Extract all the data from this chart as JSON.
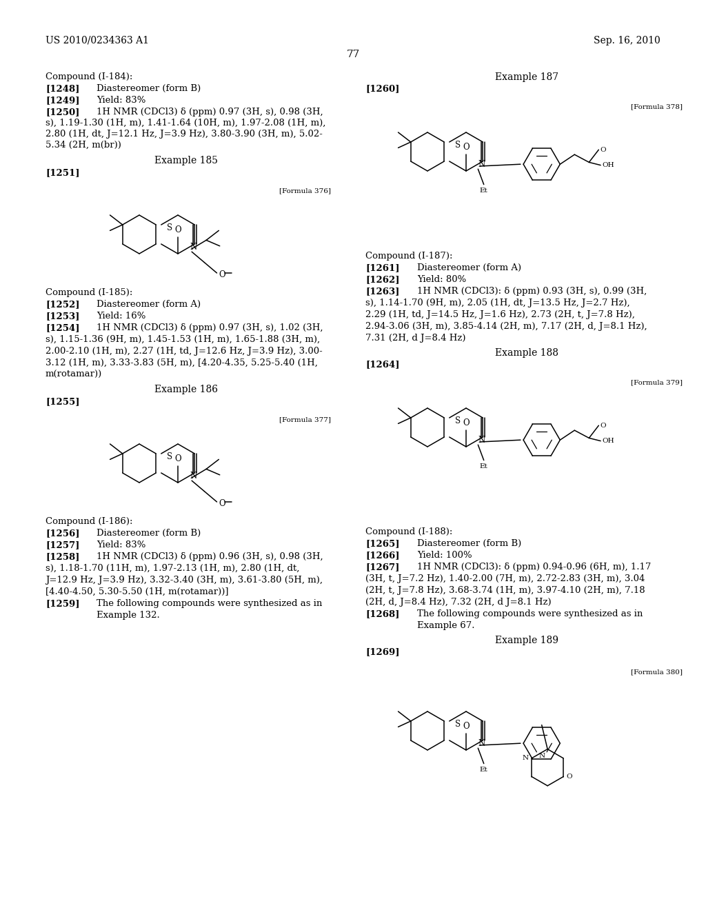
{
  "bg": "#ffffff",
  "header_left": "US 2010/0234363 A1",
  "header_right": "Sep. 16, 2010",
  "page_num": "77"
}
